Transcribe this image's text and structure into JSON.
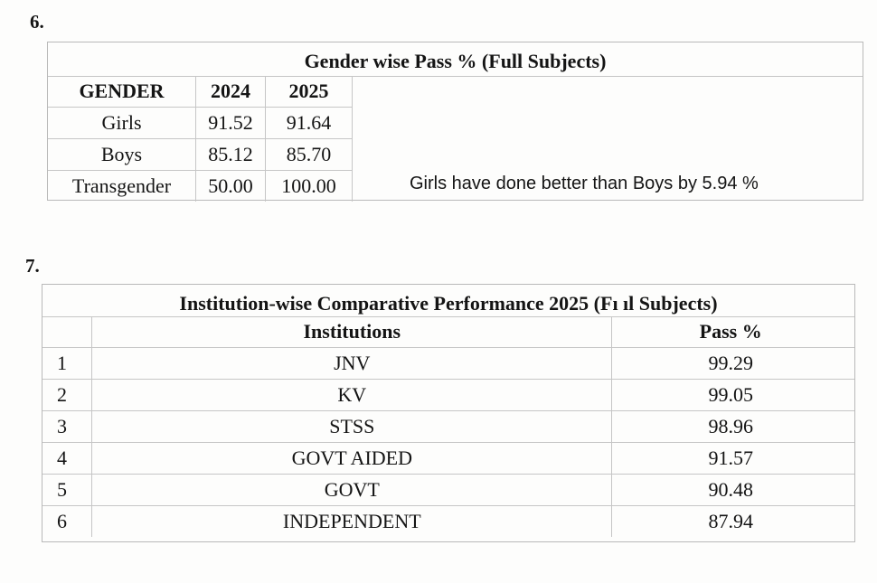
{
  "section6": {
    "number": "6.",
    "title": "Gender wise Pass % (Full Subjects)",
    "headers": [
      "GENDER",
      "2024",
      "2025"
    ],
    "rows": [
      [
        "Girls",
        "91.52",
        "91.64"
      ],
      [
        "Boys",
        "85.12",
        "85.70"
      ],
      [
        "Transgender",
        "50.00",
        "100.00"
      ]
    ],
    "note": "Girls have done better than Boys by 5.94 %"
  },
  "section7": {
    "number": "7.",
    "title": "Institution-wise Comparative Performance 2025 (Fı ıl Subjects)",
    "headers": [
      "",
      "Institutions",
      "Pass %"
    ],
    "rows": [
      [
        "1",
        "JNV",
        "99.29"
      ],
      [
        "2",
        "KV",
        "99.05"
      ],
      [
        "3",
        "STSS",
        "98.96"
      ],
      [
        "4",
        "GOVT AIDED",
        "91.57"
      ],
      [
        "5",
        "GOVT",
        "90.48"
      ],
      [
        "6",
        "INDEPENDENT",
        "87.94"
      ]
    ]
  }
}
